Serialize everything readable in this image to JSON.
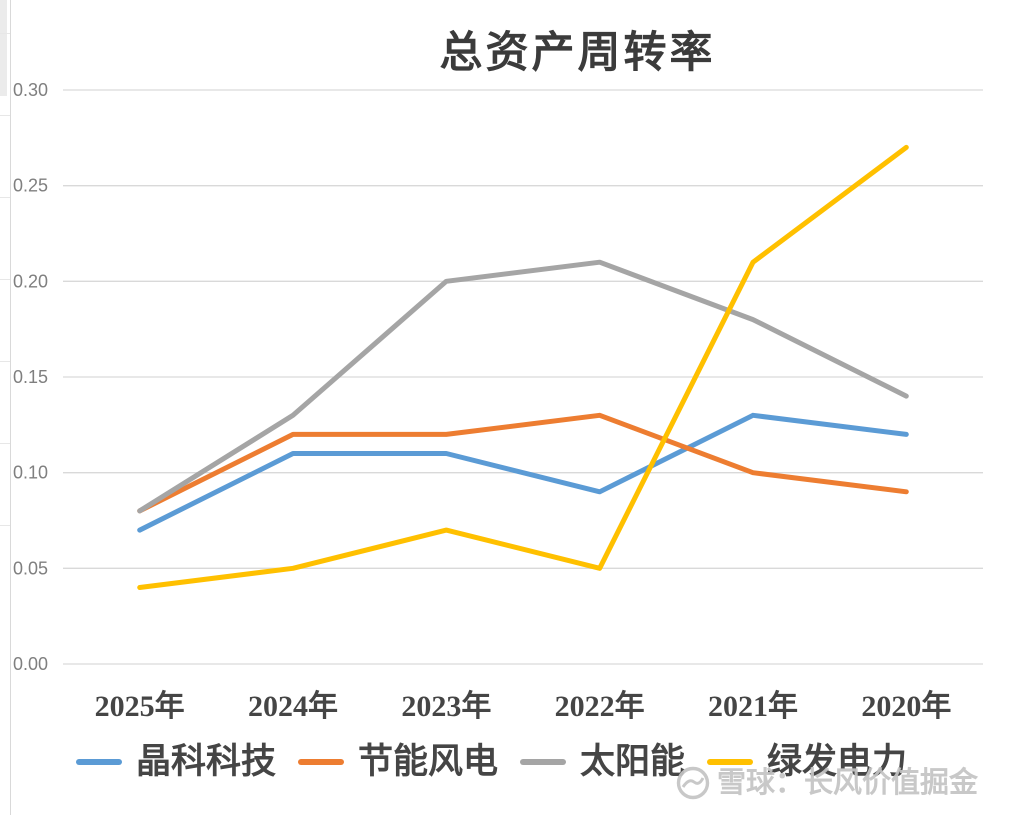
{
  "chart_data": {
    "type": "line",
    "title": "总资产周转率",
    "categories": [
      "2025年",
      "2024年",
      "2023年",
      "2022年",
      "2021年",
      "2020年"
    ],
    "series": [
      {
        "name": "晶科科技",
        "color": "#5B9BD5",
        "values": [
          0.07,
          0.11,
          0.11,
          0.09,
          0.13,
          0.12
        ]
      },
      {
        "name": "节能风电",
        "color": "#ED7D31",
        "values": [
          0.08,
          0.12,
          0.12,
          0.13,
          0.1,
          0.09
        ]
      },
      {
        "name": "太阳能",
        "color": "#A5A5A5",
        "values": [
          0.08,
          0.13,
          0.2,
          0.21,
          0.18,
          0.14
        ]
      },
      {
        "name": "绿发电力",
        "color": "#FFC000",
        "values": [
          0.04,
          0.05,
          0.07,
          0.05,
          0.21,
          0.27
        ]
      }
    ],
    "xlabel": "",
    "ylabel": "",
    "ylim": [
      0,
      0.3
    ],
    "ytick_step": 0.05,
    "ytick_labels": [
      "0.00",
      "0.05",
      "0.10",
      "0.15",
      "0.20",
      "0.25",
      "0.30"
    ],
    "grid": true,
    "legend_position": "bottom"
  },
  "colors": {
    "gridline": "#d9d9d9",
    "ytick_text": "#7f7f7f",
    "xtick_text": "#454545",
    "title_text": "#3b3b3b",
    "watermark": "#c4c4c4",
    "page_edge": "#d9d9d9"
  },
  "watermark": {
    "icon": "xueqiu-snowball-logo",
    "text": "雪球：长风价值掘金"
  }
}
